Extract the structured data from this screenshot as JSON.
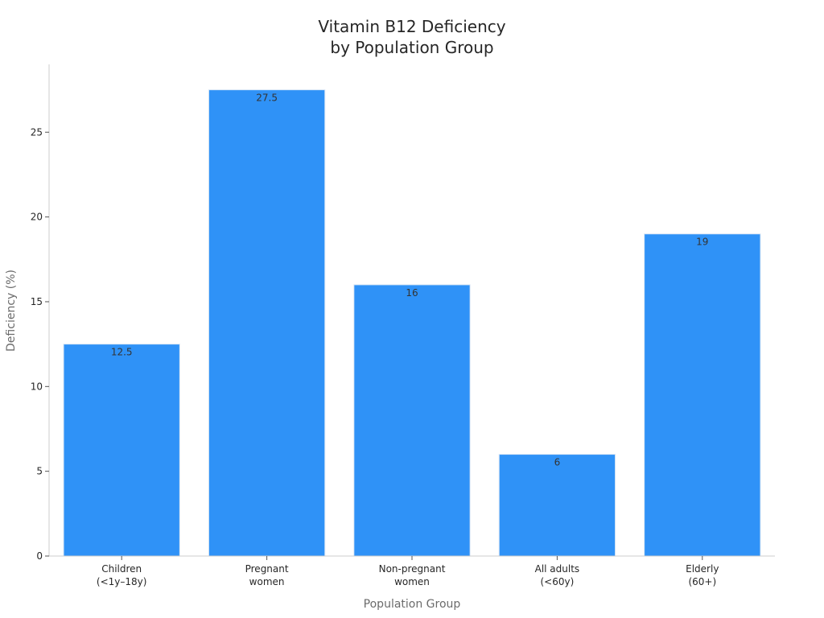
{
  "chart_data": {
    "type": "bar",
    "title": [
      "Vitamin B12 Deficiency",
      "by Population Group"
    ],
    "xlabel": "Population Group",
    "ylabel": "Deficiency (%)",
    "categories": [
      [
        "Children",
        "(<1y–18y)"
      ],
      [
        "Pregnant",
        "women"
      ],
      [
        "Non-pregnant",
        "women"
      ],
      [
        "All adults",
        "(<60y)"
      ],
      [
        "Elderly",
        "(60+)"
      ]
    ],
    "values": [
      12.5,
      27.5,
      16,
      6,
      19
    ],
    "data_labels": [
      "12.5",
      "27.5",
      "16",
      "6",
      "19"
    ],
    "ylim": [
      0,
      29
    ],
    "yticks": [
      0,
      5,
      10,
      15,
      20,
      25
    ],
    "grid": false,
    "legend": "none",
    "bar_color": "#2f92f7",
    "bar_edge_color": "#d9e6f5",
    "axis_color": "#cccccc"
  }
}
